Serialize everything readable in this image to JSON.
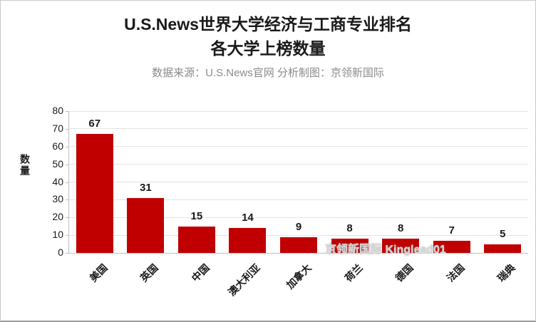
{
  "title": {
    "line1": "U.S.News世界大学经济与工商专业排名",
    "line2": "各大学上榜数量",
    "subtitle": "数据来源：U.S.News官网 分析制图：京领新国际"
  },
  "watermark": "京领新国际 Kinglead01",
  "chart_data": {
    "type": "bar",
    "title": "U.S.News世界大学经济与工商专业排名 各大学上榜数量",
    "categories": [
      "美国",
      "英国",
      "中国",
      "澳大利亚",
      "加拿大",
      "荷兰",
      "德国",
      "法国",
      "瑞典"
    ],
    "values": [
      67,
      31,
      15,
      14,
      9,
      8,
      8,
      7,
      5
    ],
    "xlabel": "",
    "ylabel": "数量",
    "ylim": [
      0,
      80
    ],
    "yticks": [
      0,
      10,
      20,
      30,
      40,
      50,
      60,
      70,
      80
    ],
    "grid": true,
    "legend": "none",
    "bar_color": "#C00000",
    "label_color": "#1a1a1a"
  }
}
